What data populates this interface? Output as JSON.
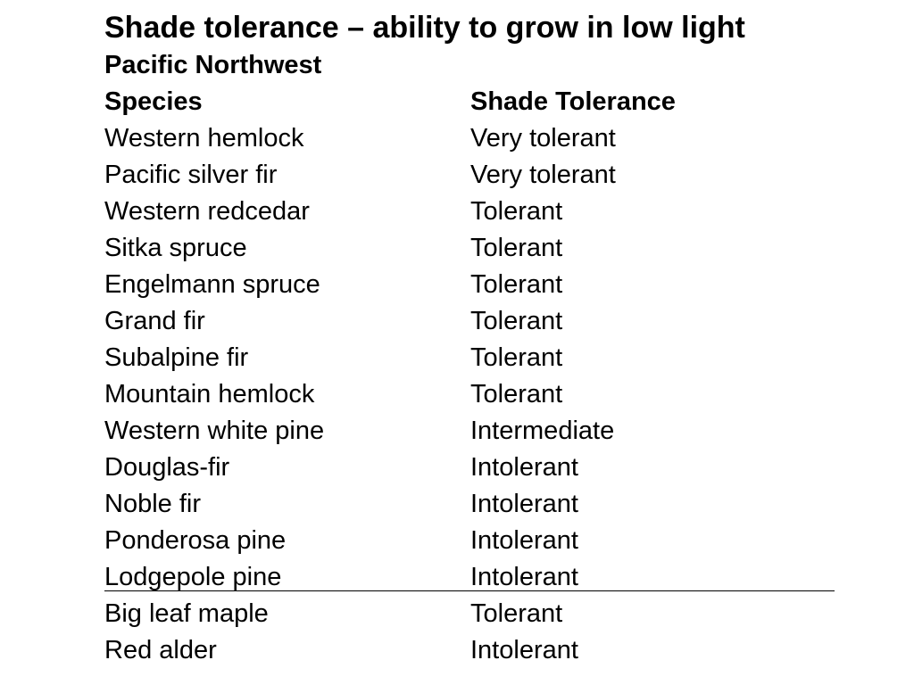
{
  "slide": {
    "title": "Shade tolerance – ability to grow in low light",
    "subtitle": "Pacific Northwest"
  },
  "table": {
    "headers": {
      "species": "Species",
      "tolerance": "Shade Tolerance"
    },
    "rows": [
      {
        "species": "Western hemlock",
        "tolerance": "Very tolerant"
      },
      {
        "species": "Pacific silver fir",
        "tolerance": "Very tolerant"
      },
      {
        "species": "Western redcedar",
        "tolerance": "Tolerant"
      },
      {
        "species": "Sitka spruce",
        "tolerance": "Tolerant"
      },
      {
        "species": "Engelmann spruce",
        "tolerance": "Tolerant"
      },
      {
        "species": "Grand fir",
        "tolerance": "Tolerant"
      },
      {
        "species": "Subalpine fir",
        "tolerance": "Tolerant"
      },
      {
        "species": "Mountain hemlock",
        "tolerance": "Tolerant"
      },
      {
        "species": "Western white pine",
        "tolerance": "Intermediate"
      },
      {
        "species": "Douglas-fir",
        "tolerance": "Intolerant"
      },
      {
        "species": "Noble fir",
        "tolerance": "Intolerant"
      },
      {
        "species": "Ponderosa pine",
        "tolerance": "Intolerant"
      },
      {
        "species": "Lodgepole pine",
        "tolerance": "Intolerant"
      },
      {
        "species": "Big leaf maple",
        "tolerance": "Tolerant"
      },
      {
        "species": "Red alder",
        "tolerance": "Intolerant"
      }
    ]
  }
}
